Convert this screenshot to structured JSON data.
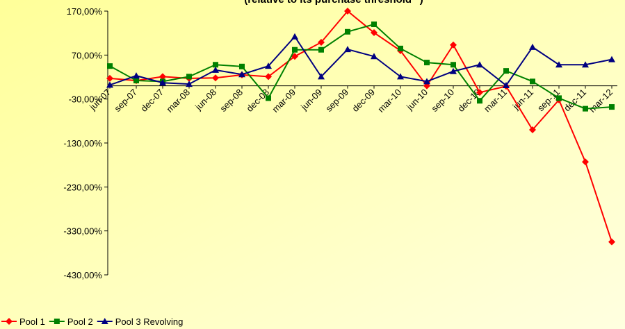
{
  "chart_data": {
    "type": "line",
    "title": "(relative to its purchase threshold**)",
    "categories": [
      "jun-07",
      "sep-07",
      "dec-07",
      "mar-08",
      "jun-08",
      "sep-08",
      "dec-08",
      "mar-09",
      "jun-09",
      "sep-09",
      "dec-09",
      "mar-10",
      "jun-10",
      "sep-10",
      "dec-10",
      "mar-11",
      "jun-11",
      "sep-11",
      "dec-11",
      "mar-12"
    ],
    "series": [
      {
        "name": "Pool 1",
        "color": "#ff0000",
        "marker": "diamond",
        "values": [
          17,
          12,
          21,
          17,
          18,
          25,
          21,
          67,
          99,
          170,
          121,
          80,
          0,
          93,
          -15,
          -1,
          -100,
          -32,
          -173,
          -355
        ]
      },
      {
        "name": "Pool 2",
        "color": "#008000",
        "marker": "square",
        "values": [
          45,
          12,
          10,
          21,
          48,
          44,
          -28,
          82,
          82,
          123,
          140,
          85,
          53,
          48,
          -34,
          34,
          10,
          -28,
          -52,
          -48
        ]
      },
      {
        "name": "Pool 3 Revolving",
        "color": "#000080",
        "marker": "triangle",
        "values": [
          2,
          23,
          7,
          4,
          36,
          26,
          45,
          112,
          21,
          83,
          67,
          21,
          10,
          33,
          48,
          1,
          88,
          48,
          48,
          60
        ]
      }
    ],
    "ylim": [
      -430,
      170
    ],
    "yticks": [
      {
        "value": 170,
        "label": "170,00%"
      },
      {
        "value": 70,
        "label": "70,00%"
      },
      {
        "value": -30,
        "label": "-30,00%"
      },
      {
        "value": -130,
        "label": "-130,00%"
      },
      {
        "value": -230,
        "label": "-230,00%"
      },
      {
        "value": -330,
        "label": "-330,00%"
      },
      {
        "value": -430,
        "label": "-430,00%"
      }
    ],
    "legend": "bottom-left"
  }
}
